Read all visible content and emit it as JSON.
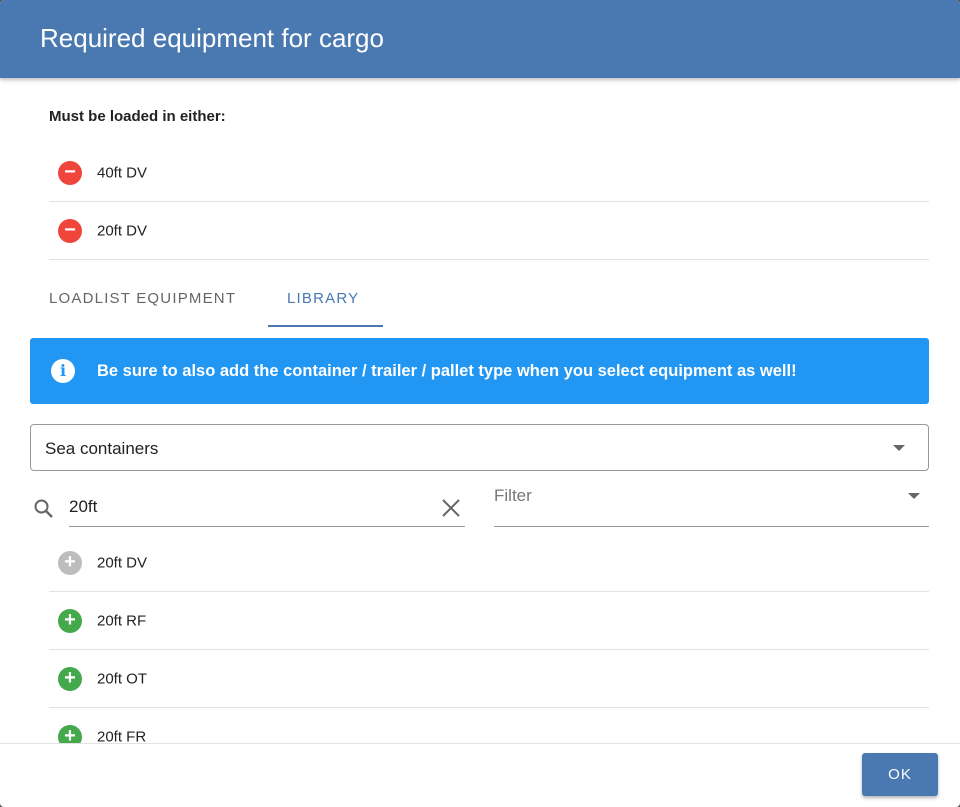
{
  "dialog": {
    "title": "Required equipment for cargo"
  },
  "required": {
    "label": "Must be loaded in either:",
    "items": [
      {
        "name": "40ft DV",
        "icon": "remove-circle-icon"
      },
      {
        "name": "20ft DV",
        "icon": "remove-circle-icon"
      }
    ]
  },
  "tabs": [
    {
      "label": "LOADLIST EQUIPMENT",
      "active": false
    },
    {
      "label": "LIBRARY",
      "active": true
    }
  ],
  "info": {
    "message": "Be sure to also add the container / trailer / pallet type when you select equipment as well!",
    "color": "#2196f3"
  },
  "category_select": {
    "value": "Sea containers"
  },
  "search": {
    "value": "20ft"
  },
  "filter": {
    "placeholder": "Filter"
  },
  "library": [
    {
      "name": "20ft DV",
      "state": "disabled"
    },
    {
      "name": "20ft RF",
      "state": "add"
    },
    {
      "name": "20ft OT",
      "state": "add"
    },
    {
      "name": "20ft FR",
      "state": "add"
    }
  ],
  "footer": {
    "ok_label": "OK"
  },
  "colors": {
    "header": "#4a78b0",
    "remove": "#f0453a",
    "add": "#43a94b",
    "disabled": "#bdbdbd"
  }
}
